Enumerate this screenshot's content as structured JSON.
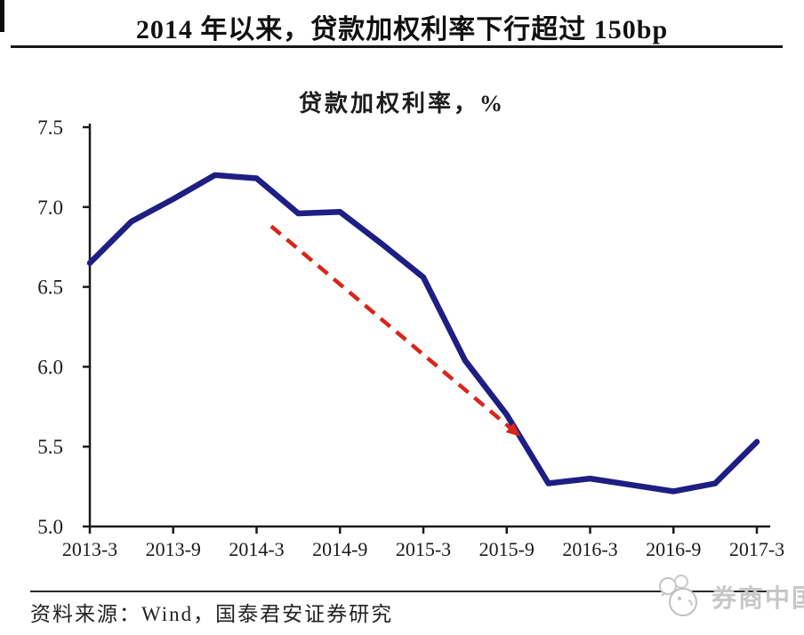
{
  "header": {
    "title": "2014 年以来，贷款加权利率下行超过 150bp"
  },
  "chart_data": {
    "type": "line",
    "title": "贷款加权利率，%",
    "categories": [
      "2013-3",
      "2013-6",
      "2013-9",
      "2013-12",
      "2014-3",
      "2014-6",
      "2014-9",
      "2014-12",
      "2015-3",
      "2015-6",
      "2015-9",
      "2015-12",
      "2016-3",
      "2016-6",
      "2016-9",
      "2016-12",
      "2017-3"
    ],
    "values": [
      6.65,
      6.91,
      7.05,
      7.2,
      7.18,
      6.96,
      6.97,
      6.77,
      6.56,
      6.04,
      5.7,
      5.27,
      5.3,
      5.26,
      5.22,
      5.27,
      5.53
    ],
    "x_tick_labels": [
      "2013-3",
      "2013-9",
      "2014-3",
      "2014-9",
      "2015-3",
      "2015-9",
      "2016-3",
      "2016-9",
      "2017-3"
    ],
    "x_tick_indices": [
      0,
      2,
      4,
      6,
      8,
      10,
      12,
      14,
      16
    ],
    "y_ticks": [
      5.0,
      5.5,
      6.0,
      6.5,
      7.0,
      7.5
    ],
    "ylim": [
      5.0,
      7.5
    ],
    "grid": false,
    "legend": "none",
    "line_color": "#1e1e84",
    "axis_color": "#1a1a1a",
    "trend_arrow": {
      "style": "dashed",
      "color": "#d8261a",
      "from": {
        "index": 4.35,
        "value": 6.88
      },
      "to": {
        "index": 10.3,
        "value": 5.57
      }
    }
  },
  "footer": {
    "source": "资料来源：Wind，国泰君安证券研究",
    "watermark": "券商中国",
    "watermark_icon": "bird-doodle-icon",
    "watermark_color": "#c7c7c7"
  }
}
